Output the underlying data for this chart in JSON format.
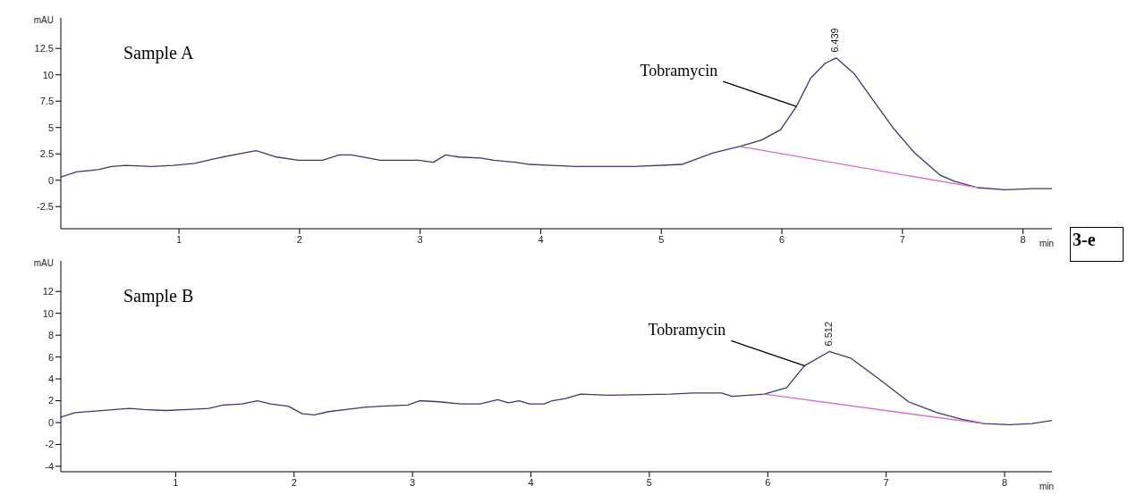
{
  "chart_data": [
    {
      "type": "line",
      "xlabel": "min",
      "ylabel": "mAU",
      "xlim": [
        0.02,
        8.24
      ],
      "ylim": [
        -4.6,
        15.4
      ],
      "xticks": [
        1,
        2,
        3,
        4,
        5,
        6,
        7,
        8
      ],
      "yticks": [
        -2.5,
        0,
        2.5,
        5,
        7.5,
        10,
        12.5
      ],
      "grid": false,
      "legend": false,
      "marker": "none",
      "line_style": "solid",
      "series": [
        {
          "color": "#3a3a6e",
          "x": [
            0.02,
            0.15,
            0.33,
            0.44,
            0.56,
            0.77,
            0.95,
            1.13,
            1.24,
            1.36,
            1.54,
            1.64,
            1.81,
            1.99,
            2.19,
            2.33,
            2.43,
            2.67,
            2.99,
            3.11,
            3.21,
            3.32,
            3.5,
            3.61,
            3.79,
            3.91,
            4.09,
            4.3,
            4.77,
            5.17,
            5.43,
            5.65,
            5.83,
            5.99,
            6.12,
            6.24,
            6.36,
            6.45,
            6.6,
            6.75,
            6.92,
            7.1,
            7.31,
            7.43,
            7.62,
            7.85,
            8.09,
            8.24
          ],
          "values": [
            0.3,
            0.8,
            1.0,
            1.3,
            1.4,
            1.3,
            1.4,
            1.6,
            1.9,
            2.2,
            2.6,
            2.8,
            2.2,
            1.9,
            1.9,
            2.4,
            2.4,
            1.9,
            1.9,
            1.7,
            2.4,
            2.2,
            2.1,
            1.9,
            1.7,
            1.5,
            1.4,
            1.3,
            1.3,
            1.5,
            2.6,
            3.2,
            3.8,
            4.8,
            7.0,
            9.7,
            11.1,
            11.6,
            10.1,
            7.7,
            5.0,
            2.6,
            0.5,
            -0.1,
            -0.7,
            -0.9,
            -0.8,
            -0.8
          ]
        },
        {
          "color": "#d070c8",
          "x": [
            5.65,
            7.62
          ],
          "values": [
            3.2,
            -0.7
          ]
        }
      ],
      "annotations": [
        "Sample A",
        {
          "text": "Tobramycin",
          "x": 6.12,
          "y": 7.0
        },
        {
          "text": "6.439",
          "x": 6.439,
          "y": 11.6
        },
        "3-e"
      ]
    },
    {
      "type": "line",
      "xlabel": "min",
      "ylabel": "mAU",
      "xlim": [
        0.03,
        8.4
      ],
      "ylim": [
        -4.5,
        14.8
      ],
      "xticks": [
        1,
        2,
        3,
        4,
        5,
        6,
        7,
        8
      ],
      "yticks": [
        -4,
        -2,
        0,
        2,
        4,
        6,
        8,
        10,
        12
      ],
      "grid": false,
      "legend": false,
      "marker": "none",
      "line_style": "solid",
      "series": [
        {
          "color": "#3a3a6e",
          "x": [
            0.03,
            0.15,
            0.37,
            0.61,
            0.73,
            0.92,
            1.1,
            1.28,
            1.4,
            1.56,
            1.69,
            1.8,
            1.95,
            2.07,
            2.17,
            2.29,
            2.44,
            2.59,
            2.74,
            2.96,
            3.06,
            3.23,
            3.41,
            3.57,
            3.72,
            3.81,
            3.9,
            3.99,
            4.11,
            4.18,
            4.29,
            4.42,
            4.66,
            5.18,
            5.36,
            5.61,
            5.7,
            5.97,
            6.16,
            6.31,
            6.52,
            6.7,
            6.95,
            7.19,
            7.43,
            7.64,
            7.83,
            8.04,
            8.23,
            8.4
          ],
          "values": [
            0.5,
            0.9,
            1.1,
            1.3,
            1.2,
            1.1,
            1.2,
            1.3,
            1.6,
            1.7,
            2.0,
            1.7,
            1.5,
            0.8,
            0.7,
            1.0,
            1.2,
            1.4,
            1.5,
            1.6,
            2.0,
            1.9,
            1.7,
            1.7,
            2.1,
            1.8,
            2.0,
            1.7,
            1.7,
            2.0,
            2.2,
            2.6,
            2.5,
            2.6,
            2.7,
            2.7,
            2.4,
            2.6,
            3.2,
            5.2,
            6.5,
            5.9,
            3.9,
            1.9,
            0.9,
            0.3,
            -0.1,
            -0.2,
            -0.1,
            0.2
          ]
        },
        {
          "color": "#d070c8",
          "x": [
            5.97,
            7.82
          ],
          "values": [
            2.6,
            -0.1
          ]
        }
      ],
      "annotations": [
        "Sample B",
        {
          "text": "Tobramycin",
          "x": 6.31,
          "y": 5.2
        },
        {
          "text": "6.512",
          "x": 6.512,
          "y": 6.5
        }
      ]
    }
  ]
}
